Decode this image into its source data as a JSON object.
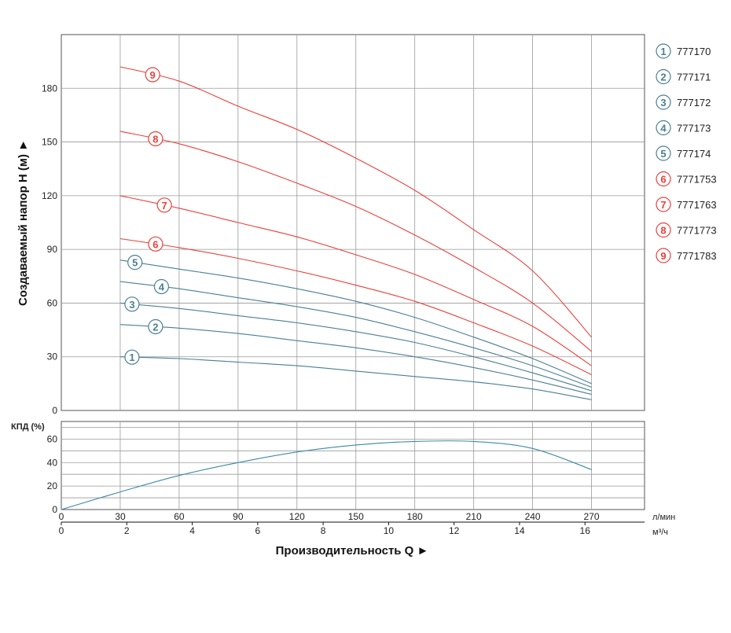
{
  "chart_data": [
    {
      "type": "line",
      "ylabel": "Создаваемый напор H (м) ►",
      "xlabel": "Производительность Q ►",
      "x_unit_primary": "л/мин",
      "x_unit_secondary": "м³/ч",
      "xlim": [
        0,
        297
      ],
      "ylim": [
        0,
        210
      ],
      "x_ticks": [
        0,
        30,
        60,
        90,
        120,
        150,
        180,
        210,
        240,
        270
      ],
      "x_ticks_secondary": [
        0,
        2,
        4,
        6,
        8,
        10,
        12,
        14,
        16
      ],
      "y_ticks": [
        0,
        30,
        60,
        90,
        120,
        150,
        180
      ],
      "grid": true,
      "legend": "right",
      "series": [
        {
          "name": "777170",
          "marker": "1",
          "color": "#4a7f96",
          "x": [
            30,
            60,
            90,
            120,
            150,
            180,
            210,
            240,
            270
          ],
          "values": [
            30,
            29,
            27,
            25,
            22,
            19,
            16,
            12,
            6
          ]
        },
        {
          "name": "777171",
          "marker": "2",
          "color": "#4a7f96",
          "x": [
            30,
            60,
            90,
            120,
            150,
            180,
            210,
            240,
            270
          ],
          "values": [
            48,
            46,
            43,
            39,
            35,
            30,
            24,
            17,
            9
          ]
        },
        {
          "name": "777172",
          "marker": "3",
          "color": "#4a7f96",
          "x": [
            30,
            60,
            90,
            120,
            150,
            180,
            210,
            240,
            270
          ],
          "values": [
            60,
            57,
            53,
            49,
            44,
            38,
            30,
            21,
            11
          ]
        },
        {
          "name": "777173",
          "marker": "4",
          "color": "#4a7f96",
          "x": [
            30,
            60,
            90,
            120,
            150,
            180,
            210,
            240,
            270
          ],
          "values": [
            72,
            68,
            63,
            58,
            52,
            44,
            35,
            25,
            13
          ]
        },
        {
          "name": "777174",
          "marker": "5",
          "color": "#4a7f96",
          "x": [
            30,
            60,
            90,
            120,
            150,
            180,
            210,
            240,
            270
          ],
          "values": [
            84,
            79,
            74,
            68,
            61,
            52,
            41,
            29,
            15
          ]
        },
        {
          "name": "7771753",
          "marker": "6",
          "color": "#e8413c",
          "x": [
            30,
            60,
            90,
            120,
            150,
            180,
            210,
            240,
            270
          ],
          "values": [
            96,
            91,
            85,
            78,
            70,
            61,
            49,
            36,
            20
          ]
        },
        {
          "name": "7771763",
          "marker": "7",
          "color": "#e8413c",
          "x": [
            30,
            60,
            90,
            120,
            150,
            180,
            210,
            240,
            270
          ],
          "values": [
            120,
            113,
            105,
            97,
            87,
            76,
            62,
            47,
            25
          ]
        },
        {
          "name": "7771773",
          "marker": "8",
          "color": "#e8413c",
          "x": [
            30,
            60,
            90,
            120,
            150,
            180,
            210,
            240,
            270
          ],
          "values": [
            156,
            149,
            139,
            127,
            114,
            98,
            80,
            60,
            33
          ]
        },
        {
          "name": "7771783",
          "marker": "9",
          "color": "#e8413c",
          "x": [
            30,
            60,
            90,
            120,
            150,
            180,
            210,
            240,
            270
          ],
          "values": [
            192,
            184,
            170,
            157,
            141,
            123,
            101,
            78,
            41
          ]
        }
      ]
    },
    {
      "type": "line",
      "ylabel": "КПД (%)",
      "xlim": [
        0,
        297
      ],
      "ylim": [
        0,
        75
      ],
      "y_ticks": [
        0,
        20,
        40,
        60
      ],
      "grid": true,
      "series": [
        {
          "color": "#3d8aa8",
          "x": [
            0,
            30,
            60,
            90,
            120,
            150,
            180,
            210,
            240,
            270
          ],
          "values": [
            0,
            15,
            29,
            40,
            49,
            55,
            58,
            58,
            52,
            34
          ]
        }
      ]
    }
  ],
  "colors": {
    "grid": "#9a9a9a",
    "frame": "#555555",
    "blue": "#4a7f96",
    "red": "#e8413c",
    "efficiency": "#3d8aa8"
  }
}
